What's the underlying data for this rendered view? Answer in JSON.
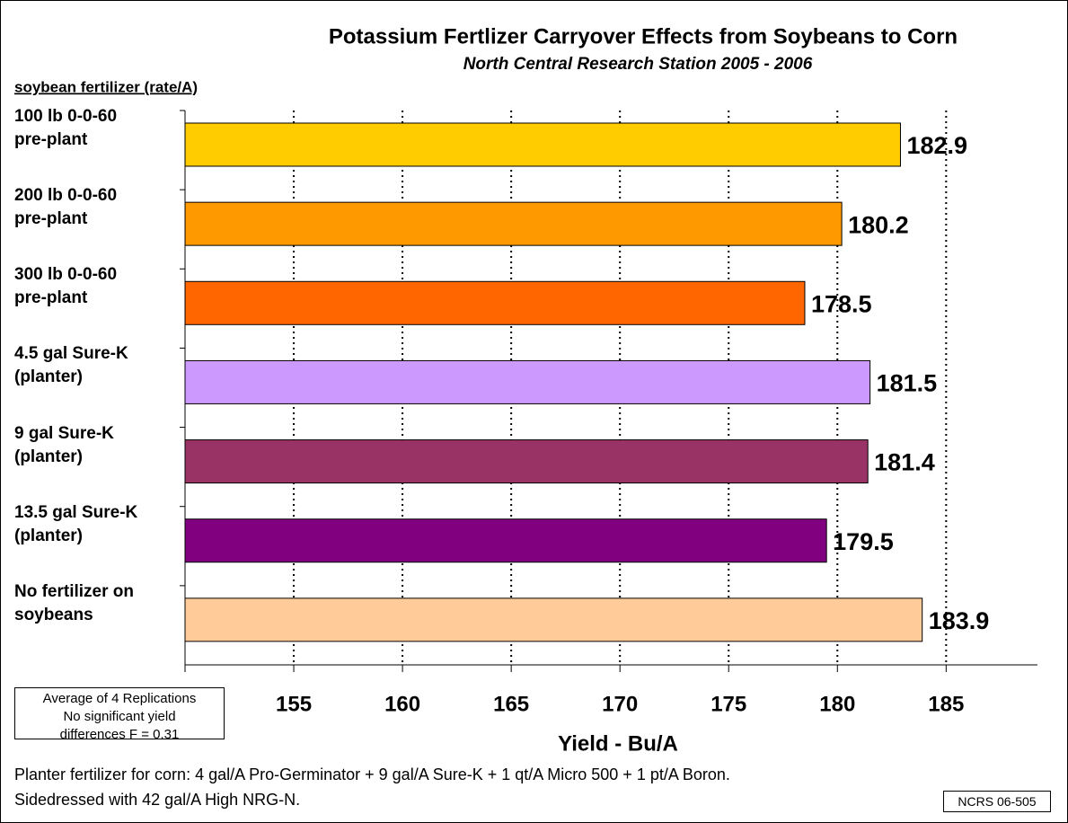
{
  "chart_data": {
    "type": "barh",
    "title": "Potassium Fertlizer Carryover Effects from Soybeans to Corn",
    "subtitle": "North Central Research Station 2005 - 2006",
    "ylabel": "soybean fertilizer (rate/A)",
    "xlabel": "Yield - Bu/A",
    "categories": [
      "100 lb 0-0-60\npre-plant",
      "200 lb 0-0-60\npre-plant",
      "300 lb 0-0-60\npre-plant",
      "4.5 gal Sure-K\n(planter)",
      "9 gal Sure-K\n(planter)",
      "13.5 gal Sure-K\n(planter)",
      "No fertilizer on\nsoybeans"
    ],
    "values": [
      182.9,
      180.2,
      178.5,
      181.5,
      181.4,
      179.5,
      183.9
    ],
    "colors": [
      "#ffcc00",
      "#ff9900",
      "#ff6600",
      "#cc99ff",
      "#993366",
      "#800080",
      "#ffcc99"
    ],
    "xlim": [
      150,
      189.2
    ],
    "xticks": [
      155,
      160,
      165,
      170,
      175,
      180,
      185
    ],
    "grid": true,
    "annotation": [
      "Average of 4 Replications",
      "No  significant yield",
      "differences F = 0.31"
    ],
    "footnote": [
      "Planter fertilizer for corn:  4 gal/A Pro-Germinator + 9 gal/A Sure-K + 1 qt/A Micro 500 + 1 pt/A Boron.",
      "Sidedressed with 42 gal/A High NRG-N."
    ],
    "code": "NCRS 06-505"
  }
}
